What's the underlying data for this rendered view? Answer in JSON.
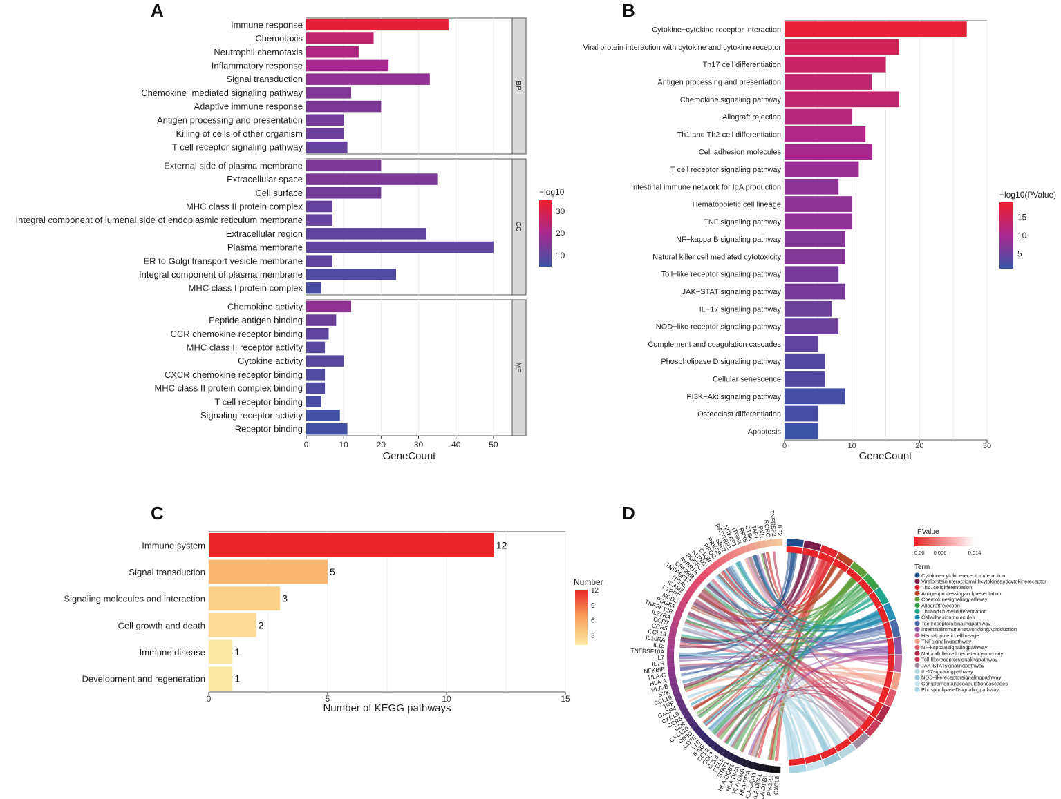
{
  "panels": {
    "A": "A",
    "B": "B",
    "C": "C",
    "D": "D"
  },
  "chart_data": [
    {
      "id": "A",
      "type": "bar",
      "orientation": "horizontal",
      "facets": [
        {
          "name": "BP",
          "categories": [
            "Immune response",
            "Chemotaxis",
            "Neutrophil chemotaxis",
            "Inflammatory response",
            "Signal transduction",
            "Chemokine−mediated signaling pathway",
            "Adaptive immune response",
            "Antigen processing and presentation",
            "Killing of cells of other organism",
            "T cell receptor signaling pathway"
          ],
          "values": [
            38,
            18,
            14,
            22,
            33,
            12,
            20,
            10,
            10,
            11
          ],
          "color_values": [
            33,
            25,
            22,
            20,
            17,
            15,
            14,
            13,
            12,
            11
          ]
        },
        {
          "name": "CC",
          "categories": [
            "External side of plasma membrane",
            "Extracellular space",
            "Cell surface",
            "MHC class II protein complex",
            "Integral component of lumenal side of endoplasmic reticulum membrane",
            "Extracellular region",
            "Plasma membrane",
            "ER to Golgi transport vesicle membrane",
            "Integral component of plasma membrane",
            "MHC class I protein complex"
          ],
          "values": [
            20,
            35,
            20,
            7,
            7,
            32,
            50,
            7,
            24,
            4
          ],
          "color_values": [
            14,
            14,
            13,
            11,
            11,
            10,
            10,
            10,
            8,
            7
          ]
        },
        {
          "name": "MF",
          "categories": [
            "Chemokine activity",
            "Peptide antigen binding",
            "CCR chemokine receptor binding",
            "MHC class II receptor activity",
            "Cytokine activity",
            "CXCR chemokine receptor binding",
            "MHC class II protein complex binding",
            "T cell receptor binding",
            "Signaling receptor activity",
            "Receptor binding"
          ],
          "values": [
            12,
            8,
            6,
            5,
            10,
            5,
            5,
            4,
            9,
            11
          ],
          "color_values": [
            17,
            12,
            10,
            9,
            9,
            8,
            8,
            7,
            6,
            6
          ]
        }
      ],
      "xlabel": "GeneCount",
      "xlim": [
        0,
        55
      ],
      "xticks": [
        "0",
        "10",
        "20",
        "30",
        "40",
        "50"
      ],
      "legend": {
        "title": "−log10",
        "ticks": [
          "30",
          "20",
          "10"
        ],
        "range": [
          5,
          35
        ]
      }
    },
    {
      "id": "B",
      "type": "bar",
      "orientation": "horizontal",
      "categories": [
        "Cytokine−cytokine receptor interaction",
        "Viral protein interaction with cytokine and cytokine receptor",
        "Th17 cell differentiation",
        "Antigen processing and presentation",
        "Chemokine signaling pathway",
        "Allograft rejection",
        "Th1 and Th2 cell differentiation",
        "Cell adhesion molecules",
        "T cell receptor signaling pathway",
        "Intestinal immune network for IgA production",
        "Hematopoietic cell lineage",
        "TNF signaling pathway",
        "NF−kappa B signaling pathway",
        "Natural killer cell mediated cytotoxicity",
        "Toll−like receptor signaling pathway",
        "JAK−STAT signaling pathway",
        "IL−17 signaling pathway",
        "NOD−like receptor signaling pathway",
        "Complement and coagulation cascades",
        "Phospholipase D signaling pathway",
        "Cellular senescence",
        "PI3K−Akt signaling pathway",
        "Osteoclast differentiation",
        "Apoptosis"
      ],
      "values": [
        27,
        17,
        15,
        13,
        17,
        10,
        12,
        13,
        11,
        8,
        10,
        10,
        9,
        9,
        8,
        9,
        7,
        8,
        5,
        6,
        6,
        9,
        5,
        5
      ],
      "color_values": [
        18,
        15,
        14,
        13,
        13,
        12,
        11,
        10,
        9,
        8,
        8,
        8,
        7,
        7,
        6,
        6,
        5,
        5,
        4,
        3,
        3,
        2,
        2,
        1
      ],
      "xlabel": "GeneCount",
      "xlim": [
        0,
        30
      ],
      "xticks": [
        "0",
        "10",
        "20",
        "30"
      ],
      "legend": {
        "title": "−log10(PValue)",
        "ticks": [
          "15",
          "10",
          "5"
        ],
        "range": [
          1,
          19
        ]
      }
    },
    {
      "id": "C",
      "type": "bar",
      "orientation": "horizontal",
      "categories": [
        "Immune system",
        "Signal transduction",
        "Signaling molecules and interaction",
        "Cell growth and death",
        "Immune disease",
        "Development and regeneration"
      ],
      "values": [
        12,
        5,
        3,
        2,
        1,
        1
      ],
      "data_labels": [
        "12",
        "5",
        "3",
        "2",
        "1",
        "1"
      ],
      "xlabel": "Number of KEGG pathways",
      "xlim": [
        0,
        15
      ],
      "xticks": [
        "0",
        "5",
        "10",
        "15"
      ],
      "legend": {
        "title": "Number",
        "ticks": [
          "12",
          "9",
          "6",
          "3"
        ],
        "range": [
          1,
          12
        ]
      }
    },
    {
      "id": "D",
      "type": "chord",
      "legend_pvalue": {
        "title": "PValue",
        "ticks": [
          "0.00",
          "0.006",
          "0.014"
        ]
      },
      "legend_term": {
        "title": "Term",
        "items": [
          {
            "label": "Cytokine-cytokinereceptorinteraction",
            "color": "#1f4e8c"
          },
          {
            "label": "Viralproteininteractionwithcytokineandcytokinereceptor",
            "color": "#7a1f4a"
          },
          {
            "label": "Th17celldifferentiation",
            "color": "#e0262f"
          },
          {
            "label": "Antigenprocessingandpresentation",
            "color": "#b8472a"
          },
          {
            "label": "Chemokinesignalingpathway",
            "color": "#5f9e3a"
          },
          {
            "label": "Allograftrejection",
            "color": "#3aa04a"
          },
          {
            "label": "Th1andTh2celldifferentiation",
            "color": "#1ea58a"
          },
          {
            "label": "Celladhesionmolecules",
            "color": "#2a8fb5"
          },
          {
            "label": "Tcellreceptorsignalingpathway",
            "color": "#4a6aa8"
          },
          {
            "label": "IntestinalimmunenetworkforIgAproduction",
            "color": "#8a5aa8"
          },
          {
            "label": "Hematopoieticcelllineage",
            "color": "#c46aa0"
          },
          {
            "label": "TNFsignalingpathway",
            "color": "#f0a08a"
          },
          {
            "label": "NF-kappaBsignalingpathway",
            "color": "#e05a6a"
          },
          {
            "label": "Naturalkillercellmediatedcytotoxicity",
            "color": "#b02a4a"
          },
          {
            "label": "Toll-likereceptorsignalingpathway",
            "color": "#c83a5a"
          },
          {
            "label": "JAK-STATsignalingpathway",
            "color": "#a08aa0"
          },
          {
            "label": "IL-17signalingpathway",
            "color": "#b8d8e0"
          },
          {
            "label": "NOD-likereceptorsignalingpathway",
            "color": "#98c8d8"
          },
          {
            "label": "Complementandcoagulationcascades",
            "color": "#c8e4ec"
          },
          {
            "label": "PhospholipaseDsignalingpathway",
            "color": "#a8d4e4"
          }
        ]
      },
      "genes": [
        "CXCL8",
        "PIK3R3",
        "HLA-DPB1",
        "HLA-DPA1",
        "HLA-DQA1",
        "HLA-DRA",
        "HLA-DMB",
        "HLA-DMA",
        "HLA-DQB1",
        "STAT1",
        "CCL5",
        "CCL4",
        "CCL3",
        "CCL2",
        "IFNG",
        "LTB",
        "CD3E",
        "CD3D",
        "CXCL10",
        "CD4",
        "CCR5",
        "CXCL9",
        "CXCR4",
        "TNF",
        "CCL19",
        "SYK",
        "HLA-B",
        "HLA-A",
        "HLA-C",
        "NFKBIE",
        "IL7R",
        "IL7",
        "TNFRSF10A",
        "IL18",
        "IL10RA",
        "CCL18",
        "CCR5",
        "CCR7",
        "IL27RA",
        "TNFSF13B",
        "PDGFA",
        "NOD2",
        "PTPRC",
        "ICAM2",
        "ITGAL",
        "TNFRSF17",
        "CSF2RB",
        "AVPR1A",
        "PDGFC",
        "KLRD1",
        "C1QB",
        "PROC",
        "PRKCB",
        "SBF2",
        "RASGRP1",
        "NCKAP1",
        "ITGAX",
        "RFX5",
        "CTSK",
        "TAP1",
        "PXR",
        "RORC",
        "TNFRSF2",
        "IL32"
      ]
    }
  ]
}
